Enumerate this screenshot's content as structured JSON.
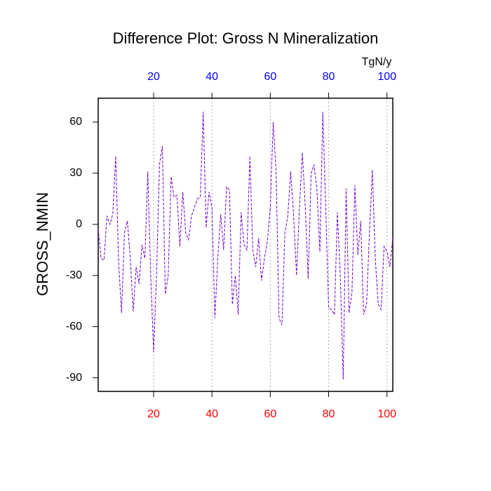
{
  "chart_data": {
    "type": "line",
    "title": "Difference Plot: Gross N Mineralization",
    "y_label": "GROSS_NMIN",
    "x2_label": "TgN/y",
    "x": [
      1,
      2,
      3,
      4,
      5,
      6,
      7,
      8,
      9,
      10,
      11,
      12,
      13,
      14,
      15,
      16,
      17,
      18,
      19,
      20,
      21,
      22,
      23,
      24,
      25,
      26,
      27,
      28,
      29,
      30,
      31,
      32,
      33,
      34,
      35,
      36,
      37,
      38,
      39,
      40,
      41,
      42,
      43,
      44,
      45,
      46,
      47,
      48,
      49,
      50,
      51,
      52,
      53,
      54,
      55,
      56,
      57,
      58,
      59,
      60,
      61,
      62,
      63,
      64,
      65,
      66,
      67,
      68,
      69,
      70,
      71,
      72,
      73,
      74,
      75,
      76,
      77,
      78,
      79,
      80,
      81,
      82,
      83,
      84,
      85,
      86,
      87,
      88,
      89,
      90,
      91,
      92,
      93,
      94,
      95,
      96,
      97,
      98,
      99,
      100,
      101,
      102
    ],
    "series": [
      {
        "color": "#7000d0",
        "values": [
          -3,
          -20,
          -21,
          5,
          0,
          6,
          40,
          -22,
          -52,
          -5,
          2,
          -20,
          -51,
          -25,
          -35,
          -12,
          -20,
          31,
          -30,
          -75,
          -30,
          35,
          46,
          -41,
          -30,
          28,
          16,
          17,
          -13,
          19,
          -5,
          -9,
          5,
          10,
          15,
          16,
          66,
          -2,
          19,
          10,
          -55,
          -20,
          6,
          -15,
          22,
          20,
          -47,
          -30,
          -53,
          7,
          -12,
          -15,
          40,
          -15,
          -25,
          -8,
          -33,
          -20,
          -10,
          10,
          60,
          30,
          -55,
          -59,
          -5,
          5,
          31,
          5,
          -30,
          10,
          42,
          10,
          -32,
          30,
          35,
          20,
          -16,
          66,
          10,
          -49,
          -50,
          -53,
          7,
          -30,
          -91,
          21,
          -52,
          -40,
          23,
          -18,
          2,
          -53,
          -47,
          -5,
          32,
          -20,
          -47,
          -50,
          -13,
          -16,
          -25,
          -8
        ]
      }
    ],
    "xlim": [
      1,
      102
    ],
    "ylim": [
      -98,
      74
    ],
    "xticks": [
      20,
      40,
      60,
      80,
      100
    ],
    "x2ticks": [
      20,
      40,
      60,
      80,
      100
    ],
    "yticks": [
      -90,
      -60,
      -30,
      0,
      30,
      60
    ],
    "x_tick_color": "#ff0000",
    "x2_tick_color": "#0000ff",
    "grid": true
  }
}
